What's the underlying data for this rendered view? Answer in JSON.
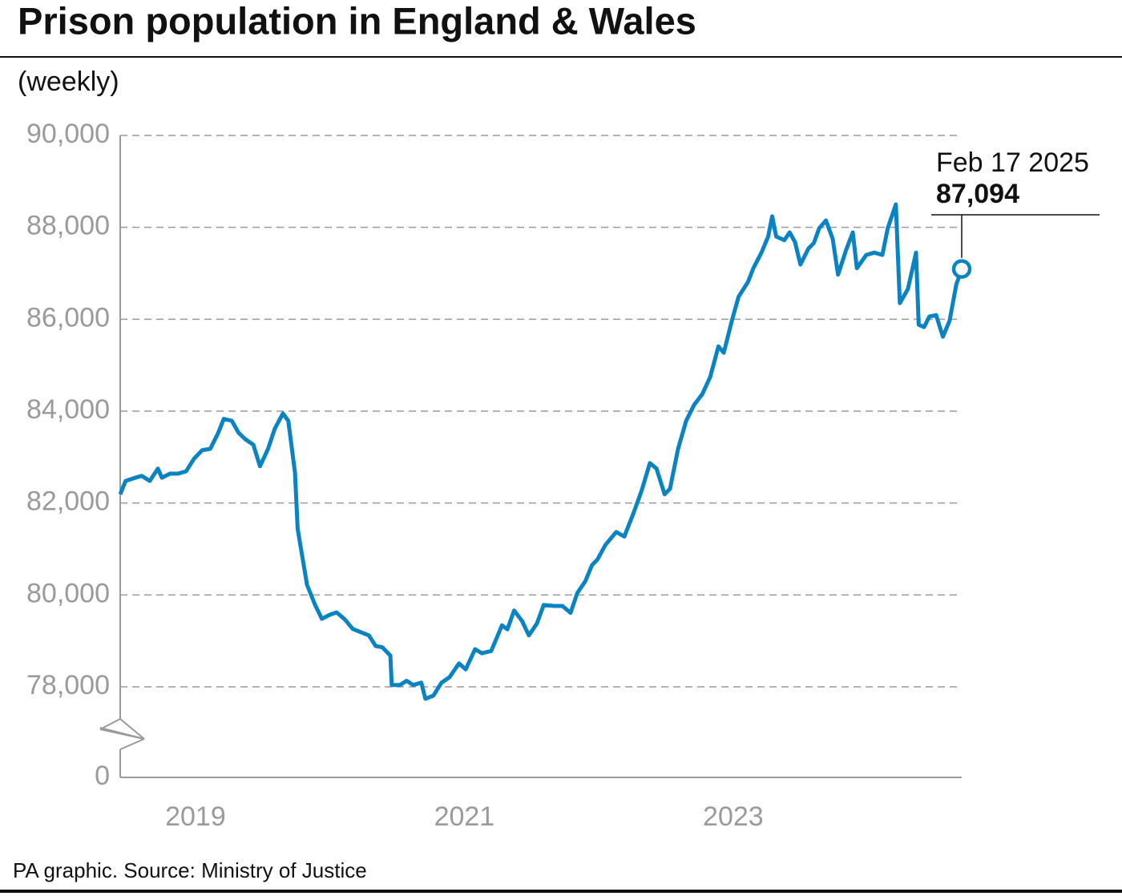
{
  "chart_data": {
    "type": "line",
    "title": "Prison population in England & Wales",
    "subtitle": "(weekly)",
    "source": "PA graphic. Source: Ministry of Justice",
    "x": [
      2018.94,
      2018.98,
      2019.04,
      2019.1,
      2019.16,
      2019.22,
      2019.25,
      2019.31,
      2019.37,
      2019.43,
      2019.49,
      2019.55,
      2019.61,
      2019.67,
      2019.71,
      2019.77,
      2019.82,
      2019.87,
      2019.93,
      2019.98,
      2020.04,
      2020.09,
      2020.15,
      2020.19,
      2020.24,
      2020.26,
      2020.3,
      2020.33,
      2020.39,
      2020.44,
      2020.5,
      2020.55,
      2020.61,
      2020.67,
      2020.73,
      2020.79,
      2020.84,
      2020.89,
      2020.95,
      2020.96,
      2021.02,
      2021.07,
      2021.12,
      2021.18,
      2021.21,
      2021.27,
      2021.33,
      2021.39,
      2021.46,
      2021.51,
      2021.58,
      2021.63,
      2021.7,
      2021.78,
      2021.82,
      2021.87,
      2021.93,
      2021.98,
      2022.04,
      2022.09,
      2022.17,
      2022.23,
      2022.29,
      2022.34,
      2022.4,
      2022.45,
      2022.49,
      2022.55,
      2022.63,
      2022.69,
      2022.76,
      2022.82,
      2022.88,
      2022.93,
      2022.99,
      2023.03,
      2023.09,
      2023.15,
      2023.21,
      2023.27,
      2023.33,
      2023.39,
      2023.43,
      2023.49,
      2023.54,
      2023.61,
      2023.65,
      2023.71,
      2023.76,
      2023.79,
      2023.82,
      2023.88,
      2023.92,
      2023.96,
      2024.0,
      2024.06,
      2024.1,
      2024.14,
      2024.19,
      2024.24,
      2024.28,
      2024.34,
      2024.39,
      2024.42,
      2024.49,
      2024.55,
      2024.61,
      2024.65,
      2024.71,
      2024.74,
      2024.8,
      2024.86,
      2024.88,
      2024.92,
      2024.96,
      2025.01,
      2025.06,
      2025.11,
      2025.16,
      2025.2
    ],
    "series": [
      {
        "color": "#0a83c2",
        "values": [
          82190,
          82480,
          82540,
          82590,
          82480,
          82750,
          82550,
          82640,
          82640,
          82690,
          82970,
          83150,
          83180,
          83530,
          83830,
          83790,
          83530,
          83390,
          83270,
          82800,
          83180,
          83620,
          83950,
          83790,
          82660,
          81440,
          80740,
          80220,
          79780,
          79480,
          79570,
          79620,
          79470,
          79260,
          79190,
          79120,
          78890,
          78860,
          78680,
          78040,
          78040,
          78130,
          78040,
          78090,
          77740,
          77810,
          78090,
          78210,
          78510,
          78380,
          78820,
          78730,
          78780,
          79340,
          79250,
          79660,
          79430,
          79120,
          79380,
          79780,
          79760,
          79760,
          79610,
          80040,
          80300,
          80650,
          80770,
          81090,
          81370,
          81270,
          81790,
          82280,
          82870,
          82750,
          82190,
          82310,
          83180,
          83790,
          84140,
          84370,
          84750,
          85410,
          85270,
          85970,
          86490,
          86810,
          87110,
          87450,
          87800,
          88240,
          87800,
          87720,
          87890,
          87680,
          87190,
          87540,
          87660,
          87980,
          88150,
          87750,
          86970,
          87510,
          87890,
          87110,
          87400,
          87450,
          87400,
          87980,
          88500,
          86350,
          86660,
          87450,
          85880,
          85830,
          86060,
          86090,
          85620,
          85970,
          86760,
          87094
        ]
      }
    ],
    "xlim": [
      2018.94,
      2025.2
    ],
    "xticks": [
      {
        "value": 2019.5,
        "label": "2019"
      },
      {
        "value": 2021.5,
        "label": "2021"
      },
      {
        "value": 2023.5,
        "label": "2023"
      }
    ],
    "ylim": [
      78000,
      90000
    ],
    "yticks": [
      {
        "value": 78000,
        "label": "78,000"
      },
      {
        "value": 80000,
        "label": "80,000"
      },
      {
        "value": 82000,
        "label": "82,000"
      },
      {
        "value": 84000,
        "label": "84,000"
      },
      {
        "value": 86000,
        "label": "86,000"
      },
      {
        "value": 88000,
        "label": "88,000"
      },
      {
        "value": 90000,
        "label": "90,000"
      },
      0
    ],
    "axis_break": true,
    "grid": true,
    "annotation": {
      "text": "Feb 17 2025",
      "value_label": "87,094"
    }
  }
}
